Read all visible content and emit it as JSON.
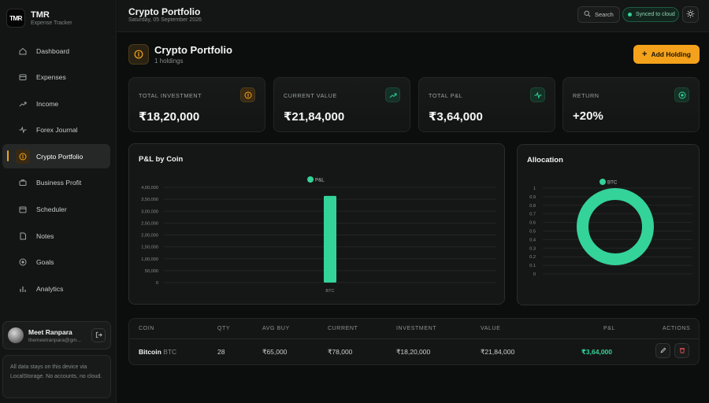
{
  "brand": {
    "logo": "TMR",
    "title": "TMR",
    "subtitle": "Expense Tracker"
  },
  "sidebar": {
    "items": [
      {
        "label": "Dashboard",
        "icon": "home-icon"
      },
      {
        "label": "Expenses",
        "icon": "wallet-icon"
      },
      {
        "label": "Income",
        "icon": "trend-up-icon"
      },
      {
        "label": "Forex Journal",
        "icon": "activity-icon"
      },
      {
        "label": "Crypto Portfolio",
        "icon": "coin-icon",
        "active": true
      },
      {
        "label": "Business Profit",
        "icon": "briefcase-icon"
      },
      {
        "label": "Scheduler",
        "icon": "calendar-icon"
      },
      {
        "label": "Notes",
        "icon": "file-icon"
      },
      {
        "label": "Goals",
        "icon": "target-icon"
      },
      {
        "label": "Analytics",
        "icon": "bar-chart-icon"
      }
    ]
  },
  "user": {
    "name": "Meet Ranpara",
    "email": "themeetranpara@gm..."
  },
  "storage_note": "All data stays on this device via LocalStorage. No accounts, no cloud.",
  "header": {
    "title": "Crypto Portfolio",
    "date": "Saturday, 05 September 2026",
    "search_label": "Search",
    "sync_label": "Synced to cloud"
  },
  "section": {
    "title": "Crypto Portfolio",
    "subtitle": "1 holdings",
    "add_button": "Add Holding"
  },
  "stats": [
    {
      "label": "TOTAL INVESTMENT",
      "value": "₹18,20,000",
      "icon": "coin-icon",
      "color": "#f4a21b"
    },
    {
      "label": "CURRENT VALUE",
      "value": "₹21,84,000",
      "icon": "trend-up-icon",
      "color": "#34d399"
    },
    {
      "label": "TOTAL P&L",
      "value": "₹3,64,000",
      "icon": "activity-icon",
      "color": "#34d399"
    },
    {
      "label": "RETURN",
      "value": "+20%",
      "icon": "target-icon",
      "color": "#34d399"
    }
  ],
  "chart_data": [
    {
      "type": "bar",
      "title": "P&L by Coin",
      "categories": [
        "BTC"
      ],
      "series": [
        {
          "name": "P&L",
          "values": [
            364000
          ],
          "color": "#34d399"
        }
      ],
      "yticks": [
        "0",
        "50,000",
        "1,00,000",
        "1,50,000",
        "2,00,000",
        "2,50,000",
        "3,00,000",
        "3,50,000",
        "4,00,000"
      ],
      "ylim": [
        0,
        400000
      ],
      "grid": true,
      "legend": "top-center"
    },
    {
      "type": "pie",
      "title": "Allocation",
      "labels": [
        "BTC"
      ],
      "values": [
        100
      ],
      "colors": [
        "#34d399"
      ],
      "yticks": [
        "0",
        "0.1",
        "0.2",
        "0.3",
        "0.4",
        "0.5",
        "0.6",
        "0.7",
        "0.8",
        "0.9",
        "1"
      ],
      "grid": true,
      "legend": "top-center"
    }
  ],
  "table": {
    "headers": {
      "coin": "COIN",
      "qty": "QTY",
      "avg_buy": "AVG BUY",
      "current": "CURRENT",
      "investment": "INVESTMENT",
      "value": "VALUE",
      "pnl": "P&L",
      "actions": "ACTIONS"
    },
    "rows": [
      {
        "coin_name": "Bitcoin",
        "coin_symbol": "BTC",
        "qty": "28",
        "avg_buy": "₹65,000",
        "current": "₹78,000",
        "investment": "₹18,20,000",
        "value": "₹21,84,000",
        "pnl": "₹3,64,000"
      }
    ]
  }
}
